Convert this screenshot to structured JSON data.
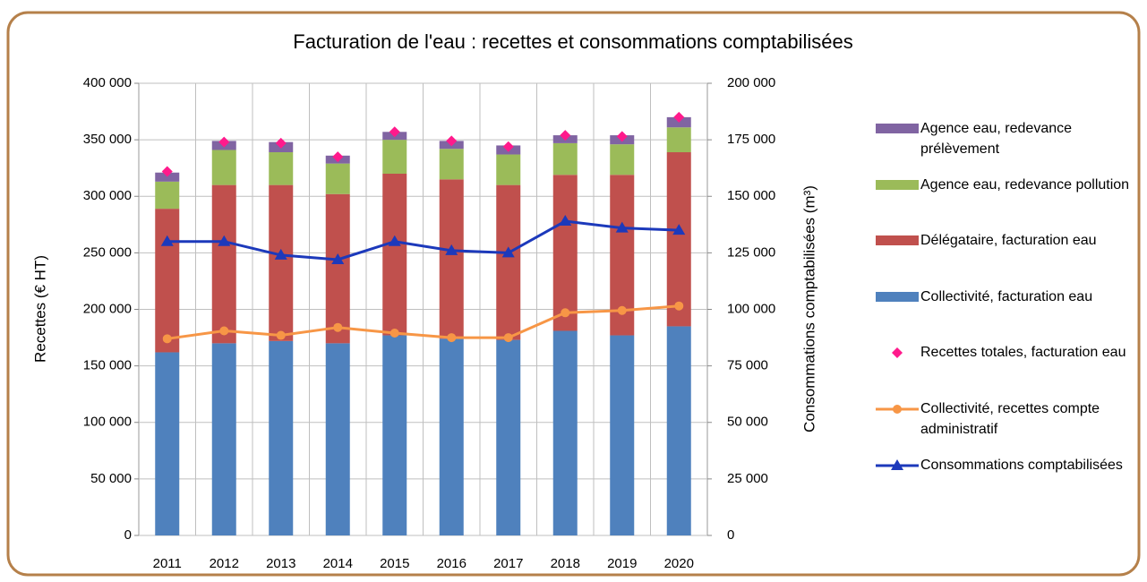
{
  "chart_data": {
    "type": "bar",
    "title": "Facturation de l'eau : recettes et consommations comptabilisées",
    "y_label": "Recettes (€ HT)",
    "y2_label": "Consommations comptabilisées (m³)",
    "categories": [
      "2011",
      "2012",
      "2013",
      "2014",
      "2015",
      "2016",
      "2017",
      "2018",
      "2019",
      "2020"
    ],
    "ylim": [
      0,
      400000
    ],
    "yticks": [
      0,
      {
        "value": 50000,
        "label": "50 000"
      },
      {
        "value": 100000,
        "label": "100 000"
      },
      {
        "value": 150000,
        "label": "150 000"
      },
      {
        "value": 200000,
        "label": "200 000"
      },
      {
        "value": 250000,
        "label": "250 000"
      },
      {
        "value": 300000,
        "label": "300 000"
      },
      {
        "value": 350000,
        "label": "350 000"
      },
      {
        "value": 400000,
        "label": "400 000"
      }
    ],
    "y2lim": [
      0,
      200000
    ],
    "y2ticks": [
      0,
      {
        "value": 25000,
        "label": "25 000"
      },
      {
        "value": 50000,
        "label": "50 000"
      },
      {
        "value": 75000,
        "label": "75 000"
      },
      {
        "value": 100000,
        "label": "100 000"
      },
      {
        "value": 125000,
        "label": "125 000"
      },
      {
        "value": 150000,
        "label": "150 000"
      },
      {
        "value": 175000,
        "label": "175 000"
      },
      {
        "value": 200000,
        "label": "200 000"
      }
    ],
    "grid": true,
    "legend": "right",
    "series": [
      {
        "name": "Agence eau, redevance prélèvement",
        "type": "bar",
        "color": "#8064a2",
        "values": [
          8000,
          8000,
          9000,
          7000,
          7000,
          7000,
          8000,
          7000,
          8000,
          9000
        ]
      },
      {
        "name": "Agence eau, redevance pollution",
        "type": "bar",
        "color": "#9bbb59",
        "values": [
          24000,
          31000,
          29000,
          27000,
          30000,
          27000,
          27000,
          28000,
          27000,
          22000
        ]
      },
      {
        "name": "Délégataire, facturation eau",
        "type": "bar",
        "color": "#c0504d",
        "values": [
          127000,
          140000,
          138000,
          132000,
          143000,
          141000,
          137000,
          138000,
          142000,
          154000
        ]
      },
      {
        "name": "Collectivité, facturation eau",
        "type": "bar",
        "color": "#4f81bd",
        "values": [
          162000,
          170000,
          172000,
          170000,
          177000,
          174000,
          173000,
          181000,
          177000,
          185000
        ]
      },
      {
        "name": "Recettes totales, facturation eau",
        "type": "scatter",
        "color": "#ff1a8c",
        "values": [
          322000,
          348000,
          347000,
          335000,
          357000,
          349000,
          344000,
          354000,
          353000,
          370000
        ]
      },
      {
        "name": "Collectivité, recettes compte administratif",
        "type": "line",
        "color": "#f79646",
        "values": [
          174000,
          181000,
          177000,
          184000,
          179000,
          175000,
          175000,
          197000,
          199000,
          203000
        ]
      },
      {
        "name": "Consommations comptabilisées",
        "type": "line",
        "axis": "y2",
        "color": "#1c39bb",
        "values": [
          130000,
          130000,
          124000,
          122000,
          130000,
          126000,
          125000,
          139000,
          136000,
          135000
        ]
      }
    ]
  }
}
